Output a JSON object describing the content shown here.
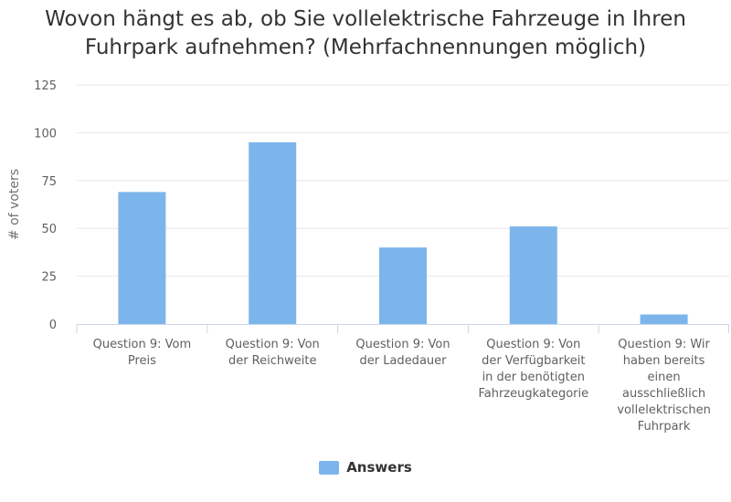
{
  "chart_data": {
    "type": "bar",
    "title_lines": [
      "Wovon hängt es ab, ob Sie vollelektrische Fahrzeuge in Ihren",
      "Fuhrpark aufnehmen? (Mehrfachnennungen möglich)"
    ],
    "xlabel": "",
    "ylabel": "# of voters",
    "ylim": [
      0,
      125
    ],
    "yticks": [
      "0",
      "25",
      "50",
      "75",
      "100",
      "125"
    ],
    "grid": true,
    "legend_position": "bottom-center",
    "categories": [
      [
        "Question 9: Vom",
        "Preis"
      ],
      [
        "Question 9: Von",
        "der Reichweite"
      ],
      [
        "Question 9: Von",
        "der Ladedauer"
      ],
      [
        "Question 9: Von",
        "der Verfügbarkeit",
        "in der benötigten",
        "Fahrzeugkategorie"
      ],
      [
        "Question 9: Wir",
        "haben bereits",
        "einen",
        "ausschließlich",
        "vollelektrischen",
        "Fuhrpark"
      ]
    ],
    "series": [
      {
        "name": "Answers",
        "color": "#7cb5ec",
        "values": [
          69,
          95,
          40,
          51,
          5
        ]
      }
    ]
  }
}
